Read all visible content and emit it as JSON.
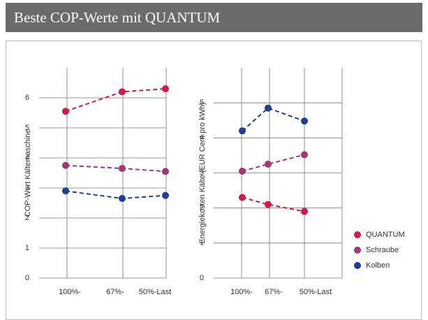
{
  "header": {
    "title": "Beste COP-Werte mit QUANTUM"
  },
  "legend": [
    {
      "name": "QUANTUM",
      "color": "#d6174a"
    },
    {
      "name": "Schraube",
      "color": "#a3386e"
    },
    {
      "name": "Kolben",
      "color": "#1f3f95"
    }
  ],
  "chart_data": [
    {
      "type": "line",
      "ylabel": "COP-Wert Kältemaschine",
      "categories": [
        "100%-",
        "67%-",
        "50%-Last"
      ],
      "series": [
        {
          "values": [
            5.55,
            6.2,
            6.3
          ]
        },
        {
          "values": [
            3.75,
            3.65,
            3.55
          ]
        },
        {
          "values": [
            2.9,
            2.65,
            2.75
          ]
        }
      ],
      "ylim": [
        0,
        7
      ],
      "yticks": [
        0,
        1,
        2,
        3,
        4,
        5,
        6
      ],
      "grid": true
    },
    {
      "type": "line",
      "ylabel": "Energiekosten Kälte (EUR Cent pro kWh)",
      "categories": [
        "100%-",
        "67%-",
        "50%-Last"
      ],
      "series": [
        {
          "values": [
            2.3,
            2.1,
            1.9
          ]
        },
        {
          "values": [
            3.05,
            3.25,
            3.52
          ]
        },
        {
          "values": [
            4.2,
            4.85,
            4.48
          ]
        }
      ],
      "ylim": [
        0,
        6
      ],
      "yticks": [
        0,
        1,
        2,
        3,
        4,
        5
      ],
      "grid": true
    }
  ]
}
